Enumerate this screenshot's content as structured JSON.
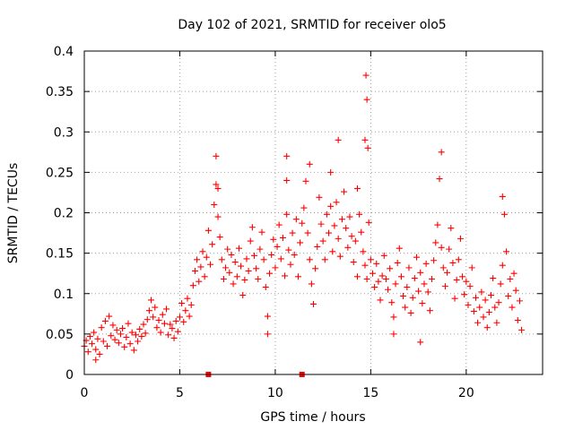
{
  "chart_data": {
    "type": "scatter",
    "title": "Day 102 of 2021, SRMTID for receiver olo5",
    "xlabel": "GPS time / hours",
    "ylabel": "SRMTID / TECUs",
    "xlim": [
      0,
      24
    ],
    "ylim": [
      0,
      0.4
    ],
    "xticks": [
      0,
      5,
      10,
      15,
      20
    ],
    "xtick_labels": [
      "0",
      "5",
      "10",
      "15",
      "20"
    ],
    "yticks": [
      0,
      0.05,
      0.1,
      0.15,
      0.2,
      0.25,
      0.3,
      0.35,
      0.4
    ],
    "ytick_labels": [
      "0",
      "0.05",
      "0.1",
      "0.15",
      "0.2",
      "0.25",
      "0.3",
      "0.35",
      "0.4"
    ],
    "grid": true,
    "marker": "plus",
    "series": [
      {
        "name": "SRMTID",
        "color": "#ff0000",
        "points": [
          [
            0.0,
            0.035
          ],
          [
            0.1,
            0.042
          ],
          [
            0.2,
            0.028
          ],
          [
            0.3,
            0.047
          ],
          [
            0.4,
            0.038
          ],
          [
            0.5,
            0.052
          ],
          [
            0.6,
            0.031
          ],
          [
            0.7,
            0.044
          ],
          [
            0.8,
            0.025
          ],
          [
            0.9,
            0.058
          ],
          [
            1.0,
            0.041
          ],
          [
            1.1,
            0.066
          ],
          [
            1.2,
            0.035
          ],
          [
            1.3,
            0.072
          ],
          [
            1.4,
            0.048
          ],
          [
            1.5,
            0.061
          ],
          [
            1.6,
            0.043
          ],
          [
            1.7,
            0.055
          ],
          [
            1.8,
            0.039
          ],
          [
            1.9,
            0.05
          ],
          [
            2.0,
            0.057
          ],
          [
            2.1,
            0.034
          ],
          [
            2.2,
            0.046
          ],
          [
            2.3,
            0.063
          ],
          [
            2.4,
            0.038
          ],
          [
            2.5,
            0.052
          ],
          [
            2.6,
            0.03
          ],
          [
            2.7,
            0.049
          ],
          [
            2.8,
            0.041
          ],
          [
            2.9,
            0.056
          ],
          [
            3.0,
            0.047
          ],
          [
            3.1,
            0.062
          ],
          [
            3.2,
            0.051
          ],
          [
            3.3,
            0.068
          ],
          [
            3.4,
            0.079
          ],
          [
            3.5,
            0.092
          ],
          [
            3.6,
            0.071
          ],
          [
            3.7,
            0.083
          ],
          [
            3.8,
            0.058
          ],
          [
            3.9,
            0.067
          ],
          [
            4.0,
            0.052
          ],
          [
            4.1,
            0.074
          ],
          [
            4.2,
            0.063
          ],
          [
            4.3,
            0.081
          ],
          [
            4.4,
            0.049
          ],
          [
            4.5,
            0.062
          ],
          [
            4.6,
            0.057
          ],
          [
            4.7,
            0.045
          ],
          [
            4.8,
            0.066
          ],
          [
            4.9,
            0.053
          ],
          [
            5.0,
            0.071
          ],
          [
            5.1,
            0.088
          ],
          [
            5.2,
            0.065
          ],
          [
            5.3,
            0.079
          ],
          [
            5.4,
            0.094
          ],
          [
            5.5,
            0.072
          ],
          [
            5.6,
            0.086
          ],
          [
            5.7,
            0.11
          ],
          [
            5.8,
            0.128
          ],
          [
            5.9,
            0.142
          ],
          [
            6.0,
            0.115
          ],
          [
            6.1,
            0.133
          ],
          [
            6.2,
            0.152
          ],
          [
            6.3,
            0.121
          ],
          [
            6.4,
            0.145
          ],
          [
            6.5,
            0.178
          ],
          [
            6.6,
            0.136
          ],
          [
            6.7,
            0.161
          ],
          [
            6.8,
            0.21
          ],
          [
            6.9,
            0.235
          ],
          [
            7.0,
            0.195
          ],
          [
            7.1,
            0.17
          ],
          [
            7.2,
            0.142
          ],
          [
            7.3,
            0.118
          ],
          [
            7.4,
            0.132
          ],
          [
            7.5,
            0.155
          ],
          [
            7.6,
            0.126
          ],
          [
            7.7,
            0.148
          ],
          [
            7.8,
            0.112
          ],
          [
            7.9,
            0.139
          ],
          [
            8.0,
            0.121
          ],
          [
            8.1,
            0.156
          ],
          [
            8.2,
            0.134
          ],
          [
            8.3,
            0.098
          ],
          [
            8.4,
            0.117
          ],
          [
            8.5,
            0.143
          ],
          [
            8.6,
            0.128
          ],
          [
            8.7,
            0.165
          ],
          [
            8.8,
            0.182
          ],
          [
            8.9,
            0.147
          ],
          [
            9.0,
            0.131
          ],
          [
            9.1,
            0.118
          ],
          [
            9.2,
            0.155
          ],
          [
            9.3,
            0.176
          ],
          [
            9.4,
            0.142
          ],
          [
            9.5,
            0.108
          ],
          [
            9.6,
            0.072
          ],
          [
            9.7,
            0.125
          ],
          [
            9.8,
            0.148
          ],
          [
            9.9,
            0.167
          ],
          [
            10.0,
            0.132
          ],
          [
            10.1,
            0.158
          ],
          [
            10.2,
            0.185
          ],
          [
            10.3,
            0.143
          ],
          [
            10.4,
            0.169
          ],
          [
            10.5,
            0.122
          ],
          [
            10.6,
            0.198
          ],
          [
            10.7,
            0.154
          ],
          [
            10.8,
            0.136
          ],
          [
            10.9,
            0.175
          ],
          [
            11.0,
            0.148
          ],
          [
            11.1,
            0.192
          ],
          [
            11.2,
            0.121
          ],
          [
            11.3,
            0.163
          ],
          [
            11.4,
            0.187
          ],
          [
            11.5,
            0.206
          ],
          [
            11.6,
            0.239
          ],
          [
            11.7,
            0.175
          ],
          [
            11.8,
            0.142
          ],
          [
            11.9,
            0.112
          ],
          [
            12.0,
            0.087
          ],
          [
            12.1,
            0.131
          ],
          [
            12.2,
            0.158
          ],
          [
            12.3,
            0.219
          ],
          [
            12.4,
            0.186
          ],
          [
            12.5,
            0.165
          ],
          [
            12.6,
            0.142
          ],
          [
            12.7,
            0.198
          ],
          [
            12.8,
            0.175
          ],
          [
            12.9,
            0.208
          ],
          [
            13.0,
            0.152
          ],
          [
            13.1,
            0.184
          ],
          [
            13.2,
            0.213
          ],
          [
            13.3,
            0.168
          ],
          [
            13.4,
            0.146
          ],
          [
            13.5,
            0.192
          ],
          [
            13.6,
            0.226
          ],
          [
            13.7,
            0.181
          ],
          [
            13.8,
            0.157
          ],
          [
            13.9,
            0.195
          ],
          [
            14.0,
            0.171
          ],
          [
            14.1,
            0.139
          ],
          [
            14.2,
            0.165
          ],
          [
            14.3,
            0.121
          ],
          [
            14.4,
            0.198
          ],
          [
            14.5,
            0.176
          ],
          [
            14.6,
            0.152
          ],
          [
            14.7,
            0.135
          ],
          [
            14.8,
            0.118
          ],
          [
            14.9,
            0.188
          ],
          [
            15.0,
            0.142
          ],
          [
            15.1,
            0.125
          ],
          [
            15.2,
            0.108
          ],
          [
            15.3,
            0.137
          ],
          [
            15.4,
            0.115
          ],
          [
            15.5,
            0.092
          ],
          [
            15.6,
            0.122
          ],
          [
            15.7,
            0.147
          ],
          [
            15.8,
            0.118
          ],
          [
            15.9,
            0.105
          ],
          [
            16.0,
            0.131
          ],
          [
            16.1,
            0.089
          ],
          [
            16.2,
            0.071
          ],
          [
            16.3,
            0.112
          ],
          [
            16.4,
            0.138
          ],
          [
            16.5,
            0.156
          ],
          [
            16.6,
            0.121
          ],
          [
            16.7,
            0.097
          ],
          [
            16.8,
            0.083
          ],
          [
            16.9,
            0.108
          ],
          [
            17.0,
            0.132
          ],
          [
            17.1,
            0.076
          ],
          [
            17.2,
            0.095
          ],
          [
            17.3,
            0.119
          ],
          [
            17.4,
            0.145
          ],
          [
            17.5,
            0.103
          ],
          [
            17.6,
            0.126
          ],
          [
            17.7,
            0.088
          ],
          [
            17.8,
            0.112
          ],
          [
            17.9,
            0.137
          ],
          [
            18.0,
            0.102
          ],
          [
            18.1,
            0.079
          ],
          [
            18.2,
            0.118
          ],
          [
            18.3,
            0.141
          ],
          [
            18.4,
            0.163
          ],
          [
            18.5,
            0.185
          ],
          [
            18.6,
            0.242
          ],
          [
            18.7,
            0.157
          ],
          [
            18.8,
            0.132
          ],
          [
            18.9,
            0.109
          ],
          [
            19.0,
            0.126
          ],
          [
            19.1,
            0.155
          ],
          [
            19.2,
            0.181
          ],
          [
            19.3,
            0.138
          ],
          [
            19.4,
            0.094
          ],
          [
            19.5,
            0.117
          ],
          [
            19.6,
            0.142
          ],
          [
            19.7,
            0.168
          ],
          [
            19.8,
            0.121
          ],
          [
            19.9,
            0.099
          ],
          [
            20.0,
            0.115
          ],
          [
            20.1,
            0.086
          ],
          [
            20.2,
            0.109
          ],
          [
            20.3,
            0.132
          ],
          [
            20.4,
            0.078
          ],
          [
            20.5,
            0.095
          ],
          [
            20.6,
            0.064
          ],
          [
            20.7,
            0.083
          ],
          [
            20.8,
            0.102
          ],
          [
            20.9,
            0.071
          ],
          [
            21.0,
            0.092
          ],
          [
            21.1,
            0.058
          ],
          [
            21.2,
            0.077
          ],
          [
            21.3,
            0.098
          ],
          [
            21.4,
            0.119
          ],
          [
            21.5,
            0.083
          ],
          [
            21.6,
            0.064
          ],
          [
            21.7,
            0.089
          ],
          [
            21.8,
            0.112
          ],
          [
            21.9,
            0.135
          ],
          [
            22.0,
            0.198
          ],
          [
            22.1,
            0.152
          ],
          [
            22.2,
            0.097
          ],
          [
            22.3,
            0.118
          ],
          [
            22.4,
            0.083
          ],
          [
            22.5,
            0.125
          ],
          [
            22.6,
            0.104
          ],
          [
            22.7,
            0.067
          ],
          [
            22.8,
            0.091
          ],
          [
            22.9,
            0.055
          ],
          [
            6.9,
            0.27
          ],
          [
            10.6,
            0.27
          ],
          [
            11.8,
            0.26
          ],
          [
            13.3,
            0.29
          ],
          [
            14.7,
            0.29
          ],
          [
            14.75,
            0.37
          ],
          [
            14.8,
            0.34
          ],
          [
            14.85,
            0.28
          ],
          [
            18.7,
            0.275
          ],
          [
            21.9,
            0.22
          ],
          [
            14.3,
            0.23
          ],
          [
            12.9,
            0.25
          ],
          [
            9.6,
            0.05
          ],
          [
            16.2,
            0.05
          ],
          [
            0.6,
            0.018
          ],
          [
            17.6,
            0.04
          ],
          [
            10.6,
            0.24
          ],
          [
            7.0,
            0.23
          ]
        ]
      }
    ],
    "markers_on_axis": [
      6.5,
      11.4
    ]
  }
}
